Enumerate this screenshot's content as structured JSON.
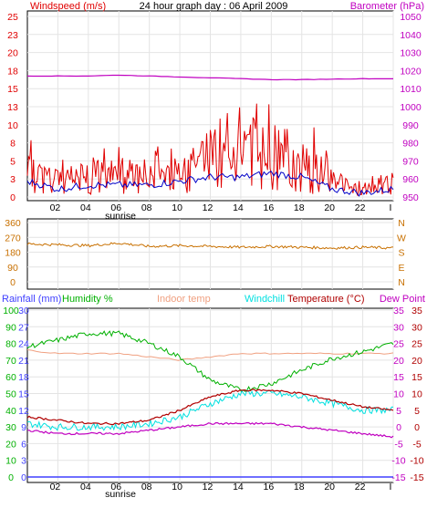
{
  "title": "24 hour graph day : 06 April 2009",
  "colors": {
    "wind": "#e00000",
    "wind_avg": "#0000c8",
    "baro": "#c000c0",
    "wdir": "#c87000",
    "rain": "#4040ff",
    "humidity": "#00b000",
    "indoor": "#f0a080",
    "windchill": "#00e0e0",
    "temperature": "#b00000",
    "dewpoint": "#c000c0",
    "frame": "#000000"
  },
  "x_ticks": [
    "02",
    "04",
    "06",
    "08",
    "10",
    "12",
    "14",
    "16",
    "18",
    "20",
    "22",
    "I"
  ],
  "sunrise_label": "sunrise",
  "panel1": {
    "left_label": "Windspeed (m/s)",
    "right_label": "Barometer (hPa)",
    "left_ticks": [
      "25",
      "23",
      "20",
      "18",
      "15",
      "13",
      "10",
      "8",
      "5",
      "3",
      "0"
    ],
    "right_ticks": [
      "1050",
      "1040",
      "1030",
      "1020",
      "1010",
      "1000",
      "990",
      "980",
      "970",
      "960",
      "950"
    ]
  },
  "panel2": {
    "left_ticks": [
      "360",
      "270",
      "180",
      "90",
      "0"
    ],
    "right_ticks": [
      "N",
      "W",
      "S",
      "E",
      "N"
    ]
  },
  "panel3": {
    "labels": {
      "rain": "Rainfall (mm)",
      "humidity": "Humidity %",
      "indoor": "Indoor temp",
      "windchill": "Windchill",
      "temperature": "Temperature (°C)",
      "dewpoint": "Dew Point"
    },
    "humidity_ticks": [
      "100",
      "90",
      "80",
      "70",
      "60",
      "50",
      "40",
      "30",
      "20",
      "10",
      "0"
    ],
    "rain_ticks": [
      "30",
      "27",
      "24",
      "21",
      "18",
      "15",
      "12",
      "9",
      "6",
      "3",
      "0"
    ],
    "temp_ticks": [
      "35",
      "30",
      "25",
      "20",
      "15",
      "10",
      "5",
      "0",
      "-5",
      "-10",
      "-15"
    ]
  },
  "chart_data": [
    {
      "type": "line",
      "title": "24 hour graph day : 06 April 2009",
      "xlabel": "",
      "ylabel": "Windspeed (m/s)",
      "y2label": "Barometer (hPa)",
      "ylim": [
        0,
        25
      ],
      "y2lim": [
        950,
        1050
      ],
      "x": [
        0,
        2,
        4,
        6,
        8,
        10,
        12,
        14,
        16,
        18,
        20,
        22,
        24
      ],
      "series": [
        {
          "name": "Windspeed (m/s)",
          "axis": "left",
          "values": [
            4,
            2,
            3,
            3,
            3,
            4,
            5,
            5,
            6,
            5,
            2,
            1,
            2
          ]
        },
        {
          "name": "Barometer (hPa)",
          "axis": "right",
          "values": [
            1017,
            1017,
            1017,
            1017.5,
            1017,
            1016.5,
            1016,
            1015.5,
            1015,
            1015,
            1015.3,
            1015.5,
            1015.5
          ]
        }
      ]
    },
    {
      "type": "line",
      "ylabel": "",
      "ylim": [
        0,
        360
      ],
      "x": [
        0,
        2,
        4,
        6,
        8,
        10,
        12,
        14,
        16,
        18,
        20,
        22,
        24
      ],
      "series": [
        {
          "values": [
            230,
            225,
            220,
            235,
            215,
            220,
            215,
            210,
            215,
            210,
            205,
            210,
            205
          ]
        }
      ]
    },
    {
      "type": "line",
      "ylabel": "Humidity %",
      "ylim": [
        0,
        100
      ],
      "y2lim_rain": [
        0,
        30
      ],
      "y3label": "Temperature (°C)",
      "y3lim": [
        -15,
        35
      ],
      "x": [
        0,
        2,
        4,
        6,
        8,
        10,
        12,
        14,
        16,
        18,
        20,
        22,
        24
      ],
      "series": [
        {
          "name": "Humidity %",
          "axis": "humidity",
          "values": [
            78,
            82,
            86,
            86,
            80,
            72,
            58,
            52,
            56,
            64,
            71,
            75,
            80
          ]
        },
        {
          "name": "Rainfall (mm)",
          "axis": "rain",
          "values": [
            0,
            0,
            0,
            0,
            0,
            0,
            0,
            0,
            0,
            0,
            0,
            0,
            0
          ]
        },
        {
          "name": "Indoor temp",
          "axis": "temp",
          "values": [
            23,
            22,
            22,
            22,
            21,
            20,
            21,
            22,
            22,
            22,
            22,
            22,
            22
          ]
        },
        {
          "name": "Windchill",
          "axis": "temp",
          "values": [
            1,
            0,
            0,
            0,
            1,
            3,
            7,
            10,
            10,
            9,
            7,
            5,
            5
          ]
        },
        {
          "name": "Temperature (°C)",
          "axis": "temp",
          "values": [
            3,
            2,
            1,
            1,
            2,
            5,
            9,
            11,
            11,
            10,
            8,
            6,
            5
          ]
        },
        {
          "name": "Dew Point",
          "axis": "temp",
          "values": [
            -1,
            -2,
            -2,
            -2,
            -1,
            0,
            1,
            1,
            1,
            0,
            -1,
            -2,
            -3
          ]
        }
      ]
    }
  ]
}
